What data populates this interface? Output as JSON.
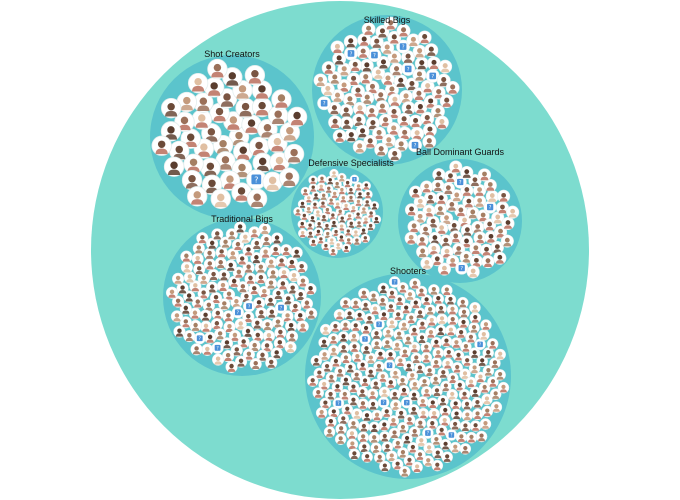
{
  "diagram": {
    "type": "circle-packing",
    "colors": {
      "outer": "#7ddccf",
      "cluster": "#5bc4cc",
      "player_circle": "#ffffff",
      "player_border": "#e3eeee",
      "face": "#8a6a55",
      "shirt": "#b86d5c",
      "placeholder": "#4a90d9"
    },
    "clusters": [
      {
        "label": "Shot Creators",
        "player_count": 52
      },
      {
        "label": "Skilled Bigs",
        "player_count": 94
      },
      {
        "label": "Defensive Specialists",
        "player_count": 78
      },
      {
        "label": "Ball Dominant Guards",
        "player_count": 72
      },
      {
        "label": "Traditional Bigs",
        "player_count": 135
      },
      {
        "label": "Shooters",
        "player_count": 256
      }
    ],
    "icons": {
      "player": "player-headshot-icon",
      "placeholder": "missing-photo-icon"
    }
  }
}
